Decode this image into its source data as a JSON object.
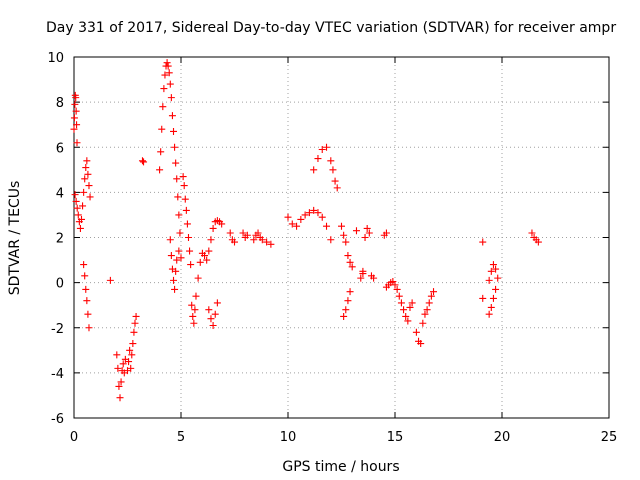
{
  "chart_data": {
    "type": "scatter",
    "title": "Day 331 of 2017, Sidereal Day-to-day VTEC variation (SDTVAR) for receiver ampr",
    "xlabel": "GPS time / hours",
    "ylabel": "SDTVAR / TECUs",
    "xlim": [
      0,
      25
    ],
    "ylim": [
      -6,
      10
    ],
    "xticks": [
      "0",
      "5",
      "10",
      "15",
      "20",
      "25"
    ],
    "yticks": [
      "-6",
      "-4",
      "-2",
      "0",
      "2",
      "4",
      "6",
      "8",
      "10"
    ],
    "grid": true,
    "marker": "+",
    "color": "#ff0000",
    "series": [
      {
        "name": "SDTVAR",
        "points": [
          [
            0.0,
            6.8
          ],
          [
            0.02,
            7.3
          ],
          [
            0.04,
            7.9
          ],
          [
            0.06,
            8.3
          ],
          [
            0.08,
            8.2
          ],
          [
            0.1,
            7.6
          ],
          [
            0.12,
            7.0
          ],
          [
            0.14,
            6.2
          ],
          [
            0.05,
            3.9
          ],
          [
            0.1,
            3.6
          ],
          [
            0.15,
            3.3
          ],
          [
            0.2,
            3.0
          ],
          [
            0.25,
            2.7
          ],
          [
            0.3,
            2.4
          ],
          [
            0.35,
            2.8
          ],
          [
            0.4,
            3.4
          ],
          [
            0.45,
            4.0
          ],
          [
            0.5,
            4.6
          ],
          [
            0.55,
            5.1
          ],
          [
            0.6,
            5.4
          ],
          [
            0.65,
            4.8
          ],
          [
            0.7,
            4.3
          ],
          [
            0.75,
            3.8
          ],
          [
            0.45,
            0.8
          ],
          [
            0.5,
            0.3
          ],
          [
            0.55,
            -0.3
          ],
          [
            0.6,
            -0.8
          ],
          [
            0.65,
            -1.4
          ],
          [
            0.7,
            -2.0
          ],
          [
            1.7,
            0.1
          ],
          [
            2.0,
            -3.2
          ],
          [
            2.05,
            -3.8
          ],
          [
            2.1,
            -4.6
          ],
          [
            2.15,
            -5.1
          ],
          [
            2.2,
            -4.4
          ],
          [
            2.25,
            -3.9
          ],
          [
            2.3,
            -3.6
          ],
          [
            2.35,
            -4.0
          ],
          [
            2.4,
            -3.4
          ],
          [
            2.5,
            -3.9
          ],
          [
            2.55,
            -3.5
          ],
          [
            2.6,
            -3.0
          ],
          [
            2.65,
            -3.8
          ],
          [
            2.7,
            -3.2
          ],
          [
            2.75,
            -2.7
          ],
          [
            2.8,
            -2.2
          ],
          [
            2.85,
            -1.8
          ],
          [
            2.9,
            -1.5
          ],
          [
            3.2,
            5.4
          ],
          [
            3.25,
            5.35
          ],
          [
            4.0,
            5.0
          ],
          [
            4.05,
            5.8
          ],
          [
            4.1,
            6.8
          ],
          [
            4.15,
            7.8
          ],
          [
            4.2,
            8.6
          ],
          [
            4.25,
            9.2
          ],
          [
            4.3,
            9.6
          ],
          [
            4.35,
            9.75
          ],
          [
            4.4,
            9.6
          ],
          [
            4.45,
            9.3
          ],
          [
            4.5,
            8.8
          ],
          [
            4.55,
            8.2
          ],
          [
            4.6,
            7.4
          ],
          [
            4.65,
            6.7
          ],
          [
            4.7,
            6.0
          ],
          [
            4.75,
            5.3
          ],
          [
            4.8,
            4.6
          ],
          [
            4.85,
            3.8
          ],
          [
            4.9,
            3.0
          ],
          [
            4.95,
            2.2
          ],
          [
            4.5,
            1.9
          ],
          [
            4.55,
            1.2
          ],
          [
            4.6,
            0.6
          ],
          [
            4.65,
            0.1
          ],
          [
            4.7,
            -0.3
          ],
          [
            4.75,
            0.5
          ],
          [
            4.8,
            1.0
          ],
          [
            4.9,
            1.4
          ],
          [
            5.0,
            1.1
          ],
          [
            5.1,
            4.7
          ],
          [
            5.15,
            4.3
          ],
          [
            5.2,
            3.7
          ],
          [
            5.25,
            3.2
          ],
          [
            5.3,
            2.6
          ],
          [
            5.35,
            2.0
          ],
          [
            5.4,
            1.4
          ],
          [
            5.45,
            0.8
          ],
          [
            5.5,
            -1.0
          ],
          [
            5.55,
            -1.5
          ],
          [
            5.6,
            -1.8
          ],
          [
            5.65,
            -1.2
          ],
          [
            5.7,
            -0.6
          ],
          [
            5.8,
            0.2
          ],
          [
            5.9,
            0.9
          ],
          [
            6.0,
            1.3
          ],
          [
            6.1,
            1.2
          ],
          [
            6.2,
            1.0
          ],
          [
            6.3,
            1.4
          ],
          [
            6.4,
            1.9
          ],
          [
            6.5,
            2.4
          ],
          [
            6.6,
            2.7
          ],
          [
            6.7,
            2.75
          ],
          [
            6.8,
            2.7
          ],
          [
            6.9,
            2.6
          ],
          [
            6.3,
            -1.2
          ],
          [
            6.4,
            -1.6
          ],
          [
            6.5,
            -1.9
          ],
          [
            6.6,
            -1.4
          ],
          [
            6.7,
            -0.9
          ],
          [
            7.3,
            2.2
          ],
          [
            7.4,
            1.9
          ],
          [
            7.5,
            1.8
          ],
          [
            7.9,
            2.2
          ],
          [
            8.0,
            2.0
          ],
          [
            8.1,
            2.1
          ],
          [
            8.4,
            1.9
          ],
          [
            8.5,
            2.1
          ],
          [
            8.6,
            2.2
          ],
          [
            8.7,
            2.0
          ],
          [
            8.8,
            1.9
          ],
          [
            9.0,
            1.8
          ],
          [
            9.2,
            1.7
          ],
          [
            10.0,
            2.9
          ],
          [
            10.2,
            2.6
          ],
          [
            10.4,
            2.5
          ],
          [
            10.6,
            2.8
          ],
          [
            10.8,
            3.0
          ],
          [
            11.0,
            3.1
          ],
          [
            11.2,
            3.2
          ],
          [
            11.4,
            3.1
          ],
          [
            11.6,
            2.9
          ],
          [
            11.8,
            2.5
          ],
          [
            12.0,
            1.9
          ],
          [
            11.2,
            5.0
          ],
          [
            11.4,
            5.5
          ],
          [
            11.6,
            5.9
          ],
          [
            11.8,
            6.0
          ],
          [
            12.0,
            5.4
          ],
          [
            12.1,
            5.0
          ],
          [
            12.2,
            4.5
          ],
          [
            12.3,
            4.2
          ],
          [
            12.5,
            2.5
          ],
          [
            12.6,
            2.1
          ],
          [
            12.7,
            1.8
          ],
          [
            12.8,
            1.2
          ],
          [
            12.9,
            0.9
          ],
          [
            13.0,
            0.7
          ],
          [
            13.2,
            2.3
          ],
          [
            13.4,
            0.2
          ],
          [
            13.5,
            0.4
          ],
          [
            12.6,
            -1.5
          ],
          [
            12.7,
            -1.2
          ],
          [
            12.8,
            -0.8
          ],
          [
            12.9,
            -0.4
          ],
          [
            13.5,
            0.5
          ],
          [
            13.6,
            2.0
          ],
          [
            13.7,
            2.4
          ],
          [
            13.8,
            2.2
          ],
          [
            13.9,
            0.3
          ],
          [
            14.0,
            0.2
          ],
          [
            14.5,
            2.1
          ],
          [
            14.6,
            2.2
          ],
          [
            14.6,
            -0.2
          ],
          [
            14.7,
            -0.1
          ],
          [
            14.8,
            0.0
          ],
          [
            14.9,
            0.05
          ],
          [
            15.0,
            -0.1
          ],
          [
            15.1,
            -0.3
          ],
          [
            15.2,
            -0.6
          ],
          [
            15.3,
            -0.9
          ],
          [
            15.4,
            -1.2
          ],
          [
            15.5,
            -1.5
          ],
          [
            15.6,
            -1.7
          ],
          [
            15.7,
            -1.1
          ],
          [
            15.8,
            -0.9
          ],
          [
            16.0,
            -2.2
          ],
          [
            16.1,
            -2.6
          ],
          [
            16.2,
            -2.7
          ],
          [
            16.3,
            -1.8
          ],
          [
            16.4,
            -1.4
          ],
          [
            16.5,
            -1.2
          ],
          [
            16.6,
            -0.9
          ],
          [
            16.7,
            -0.6
          ],
          [
            16.8,
            -0.4
          ],
          [
            19.1,
            1.8
          ],
          [
            19.1,
            -0.7
          ],
          [
            19.4,
            -1.4
          ],
          [
            19.5,
            -1.1
          ],
          [
            19.6,
            -0.7
          ],
          [
            19.7,
            -0.3
          ],
          [
            19.4,
            0.1
          ],
          [
            19.5,
            0.5
          ],
          [
            19.6,
            0.8
          ],
          [
            19.7,
            0.6
          ],
          [
            19.8,
            0.2
          ],
          [
            21.4,
            2.2
          ],
          [
            21.5,
            2.0
          ],
          [
            21.6,
            1.9
          ],
          [
            21.7,
            1.8
          ]
        ]
      }
    ]
  }
}
